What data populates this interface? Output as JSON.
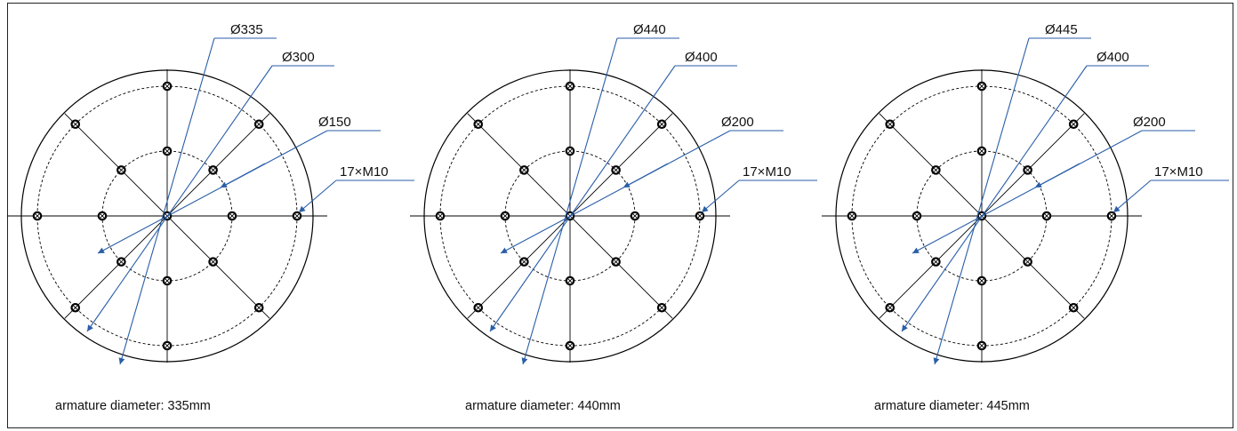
{
  "diagrams": [
    {
      "labels": [
        "Ø335",
        "Ø300",
        "Ø150",
        "17×M10"
      ],
      "caption": "armature diameter: 335mm"
    },
    {
      "labels": [
        "Ø440",
        "Ø400",
        "Ø200",
        "17×M10"
      ],
      "caption": "armature diameter: 440mm"
    },
    {
      "labels": [
        "Ø445",
        "Ø400",
        "Ø200",
        "17×M10"
      ],
      "caption": "armature diameter: 445mm"
    }
  ],
  "colors": {
    "leader": "#2a5ea8",
    "line": "#000000"
  }
}
